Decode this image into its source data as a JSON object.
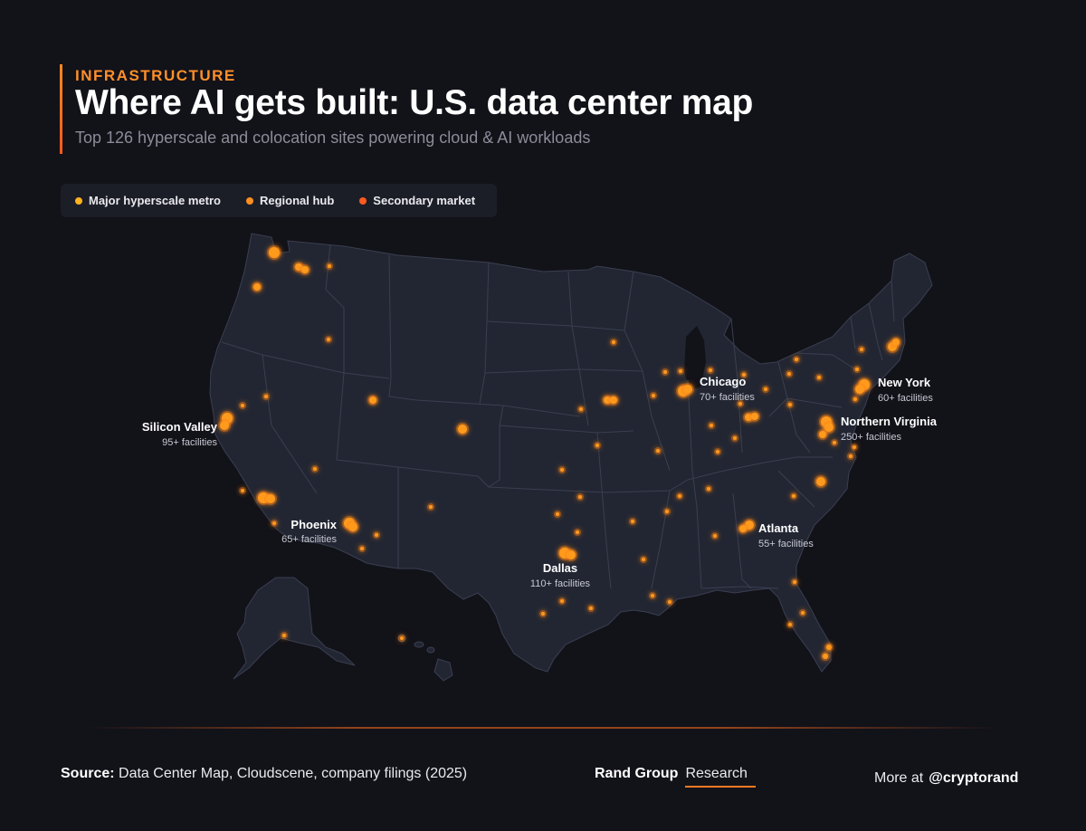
{
  "header": {
    "kicker": "INFRASTRUCTURE",
    "title": "Where AI gets built: U.S. data center map",
    "subtitle": "Top 126 hyperscale and colocation sites powering cloud & AI workloads"
  },
  "legend": {
    "items": [
      {
        "label": "Major hyperscale metro",
        "color": "#ffb21f"
      },
      {
        "label": "Regional hub",
        "color": "#ff8f1f"
      },
      {
        "label": "Secondary market",
        "color": "#ff5a1f"
      }
    ]
  },
  "colors": {
    "land": "#222633",
    "border": "#3a3f50",
    "dot": "#ff9a1f",
    "glow": "#ff7a10"
  },
  "metros": [
    {
      "name": "Silicon Valley",
      "count": "95+ facilities"
    },
    {
      "name": "Phoenix",
      "count": "65+ facilities"
    },
    {
      "name": "Dallas",
      "count": "110+ facilities"
    },
    {
      "name": "Chicago",
      "count": "70+ facilities"
    },
    {
      "name": "Atlanta",
      "count": "55+ facilities"
    },
    {
      "name": "Northern Virginia",
      "count": "250+ facilities"
    },
    {
      "name": "New York",
      "count": "60+ facilities"
    }
  ],
  "footer": {
    "source_label": "Source:",
    "source_text": "Data Center Map, Cloudscene, company filings (2025)",
    "brand_name": "Rand Group",
    "brand_unit": "Research",
    "more_label": "More at",
    "handle": "@cryptorand"
  }
}
